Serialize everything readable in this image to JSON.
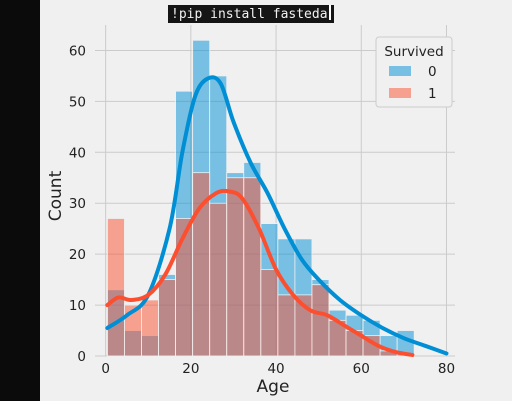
{
  "code_cell": {
    "text": "!pip install fasteda"
  },
  "chart_data": {
    "type": "bar",
    "xlabel": "Age",
    "ylabel": "Count",
    "xlim": [
      -2.5,
      82
    ],
    "ylim": [
      0,
      65
    ],
    "x_ticks": [
      0,
      20,
      40,
      60,
      80
    ],
    "y_ticks": [
      0,
      10,
      20,
      30,
      40,
      50,
      60
    ],
    "grid": true,
    "bin_edges": [
      0.42,
      4.42,
      8.42,
      12.42,
      16.42,
      20.42,
      24.42,
      28.42,
      32.42,
      36.42,
      40.42,
      44.42,
      48.42,
      52.42,
      56.42,
      60.42,
      64.42,
      68.42,
      72.42
    ],
    "legend": {
      "title": "Survived",
      "placement": "top-right"
    },
    "series": [
      {
        "name": "0",
        "color": "#008fd5",
        "values": [
          13,
          5,
          4,
          16,
          52,
          62,
          55,
          36,
          38,
          26,
          23,
          23,
          15,
          9,
          8,
          7,
          4,
          5
        ],
        "kde": [
          [
            0.4,
            5.5
          ],
          [
            5,
            8
          ],
          [
            10,
            12
          ],
          [
            15,
            25
          ],
          [
            18,
            40
          ],
          [
            21,
            51
          ],
          [
            24,
            54.5
          ],
          [
            27,
            53.5
          ],
          [
            30,
            46
          ],
          [
            34,
            38
          ],
          [
            38,
            32
          ],
          [
            42,
            25
          ],
          [
            46,
            19
          ],
          [
            50,
            15
          ],
          [
            55,
            11
          ],
          [
            60,
            8
          ],
          [
            65,
            5.5
          ],
          [
            70,
            3.5
          ],
          [
            75,
            2
          ],
          [
            80,
            0.5
          ]
        ]
      },
      {
        "name": "1",
        "color": "#fc4f30",
        "values": [
          27,
          10,
          11,
          15,
          27,
          36,
          30,
          35,
          35,
          17,
          12,
          12,
          14,
          7,
          5,
          4,
          1,
          0
        ],
        "kde": [
          [
            0.4,
            10
          ],
          [
            3,
            11.5
          ],
          [
            6,
            11
          ],
          [
            10,
            12
          ],
          [
            14,
            16
          ],
          [
            18,
            23
          ],
          [
            22,
            29
          ],
          [
            26,
            32
          ],
          [
            29,
            32.3
          ],
          [
            32,
            31
          ],
          [
            36,
            25
          ],
          [
            40,
            17
          ],
          [
            44,
            12
          ],
          [
            48,
            9
          ],
          [
            52,
            8
          ],
          [
            56,
            6
          ],
          [
            60,
            4
          ],
          [
            64,
            2
          ],
          [
            68,
            0.8
          ],
          [
            72,
            0.2
          ]
        ]
      }
    ]
  }
}
